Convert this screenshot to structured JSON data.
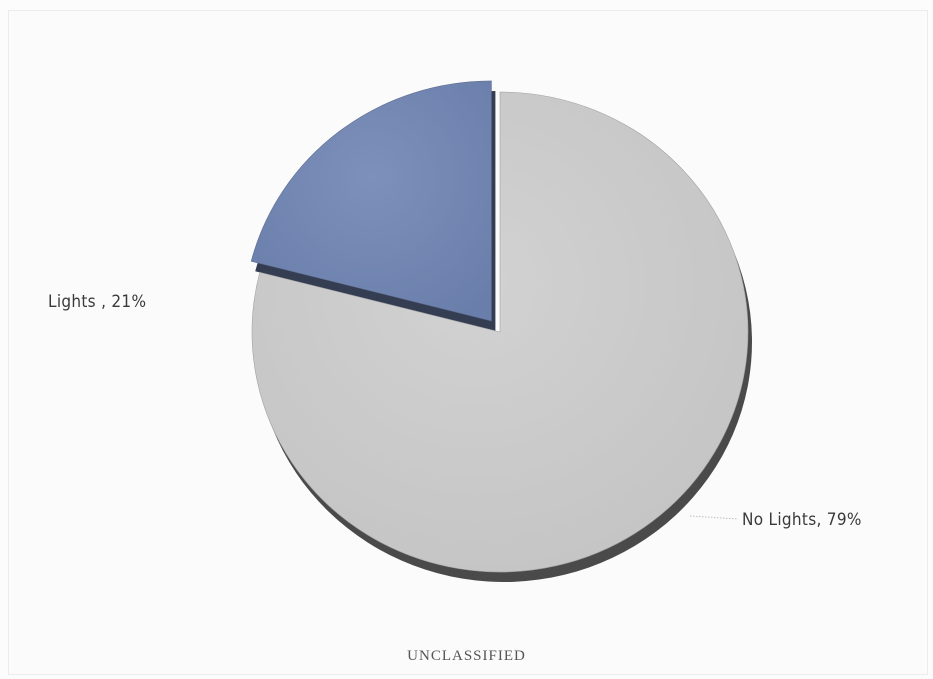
{
  "chart_data": {
    "type": "pie",
    "title": "",
    "slices": [
      {
        "label": "No Lights",
        "value": 79,
        "label_text": "No Lights, 79%",
        "color": "#c9c9c9",
        "exploded": false
      },
      {
        "label": "Lights",
        "value": 21,
        "label_text": "Lights , 21%",
        "color": "#7488b4",
        "exploded": true
      }
    ],
    "unit": "%",
    "start_angle_deg": 0,
    "direction": "clockwise",
    "legend": "none"
  },
  "footer": {
    "classification": "UNCLASSIFIED"
  }
}
